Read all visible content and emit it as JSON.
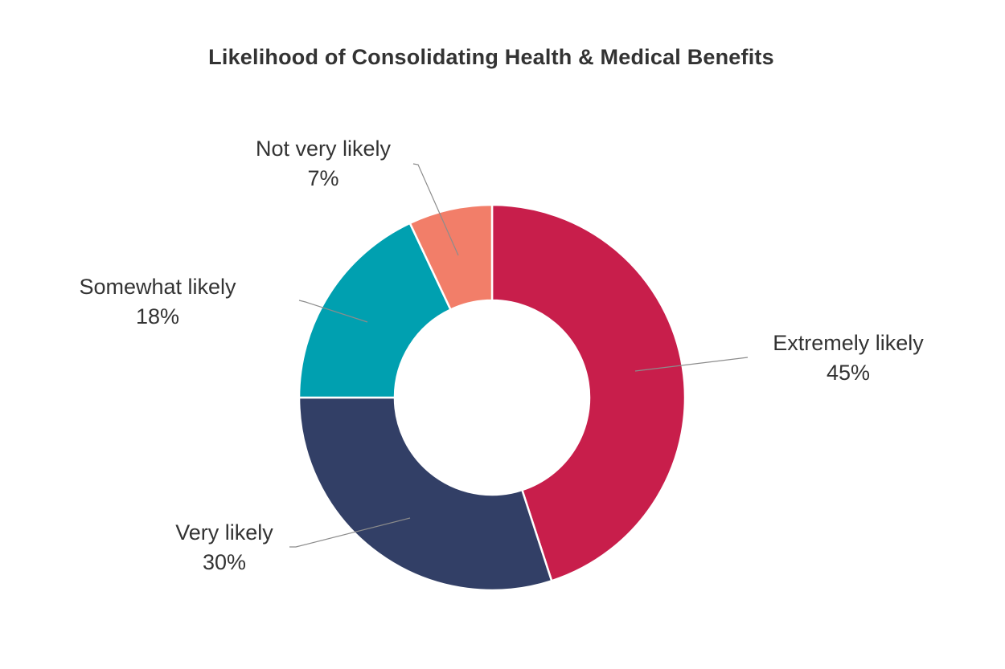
{
  "chart_data": {
    "type": "pie",
    "variant": "donut",
    "title": "Likelihood of Consolidating Health & Medical Benefits",
    "categories": [
      "Extremely likely",
      "Very likely",
      "Somewhat likely",
      "Not very likely"
    ],
    "values": [
      45,
      30,
      18,
      7
    ],
    "value_labels": [
      "45%",
      "30%",
      "18%",
      "7%"
    ],
    "colors": [
      "#C81E4B",
      "#323F66",
      "#00A0B0",
      "#F27E69"
    ],
    "start": "12 o'clock, clockwise",
    "legend": "none (data labels with leader lines)"
  }
}
